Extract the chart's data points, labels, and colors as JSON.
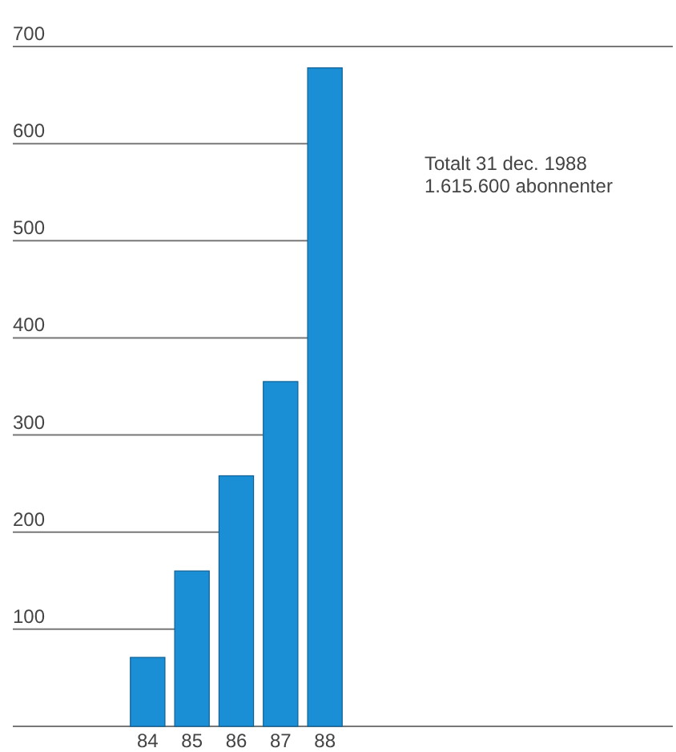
{
  "chart_data": {
    "type": "bar",
    "categories": [
      "84",
      "85",
      "86",
      "87",
      "88"
    ],
    "values": [
      71,
      160,
      258,
      355,
      678
    ],
    "color": "#1b8fd6",
    "ylim": [
      0,
      700
    ],
    "yticks": [
      {
        "value": 0,
        "label": null
      },
      100,
      200,
      300,
      400,
      500,
      600,
      700
    ],
    "grid": "y",
    "annotations": [
      "Totalt 31 dec. 1988",
      "1.615.600 abonnenter"
    ]
  }
}
